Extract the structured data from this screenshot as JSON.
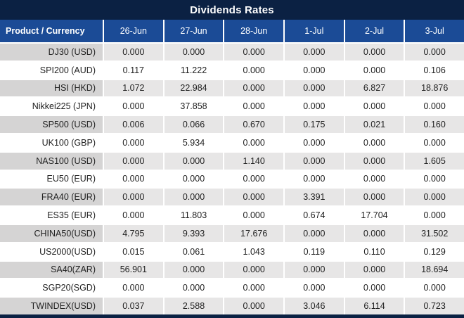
{
  "title": "Dividends Rates",
  "table": {
    "product_header": "Product / Currency",
    "date_headers": [
      "26-Jun",
      "27-Jun",
      "28-Jun",
      "1-Jul",
      "2-Jul",
      "3-Jul"
    ],
    "rows": [
      {
        "product": "DJ30 (USD)",
        "values": [
          "0.000",
          "0.000",
          "0.000",
          "0.000",
          "0.000",
          "0.000"
        ]
      },
      {
        "product": "SPI200 (AUD)",
        "values": [
          "0.117",
          "11.222",
          "0.000",
          "0.000",
          "0.000",
          "0.106"
        ]
      },
      {
        "product": "HSI (HKD)",
        "values": [
          "1.072",
          "22.984",
          "0.000",
          "0.000",
          "6.827",
          "18.876"
        ]
      },
      {
        "product": "Nikkei225 (JPN)",
        "values": [
          "0.000",
          "37.858",
          "0.000",
          "0.000",
          "0.000",
          "0.000"
        ]
      },
      {
        "product": "SP500 (USD)",
        "values": [
          "0.006",
          "0.066",
          "0.670",
          "0.175",
          "0.021",
          "0.160"
        ]
      },
      {
        "product": "UK100 (GBP)",
        "values": [
          "0.000",
          "5.934",
          "0.000",
          "0.000",
          "0.000",
          "0.000"
        ]
      },
      {
        "product": "NAS100 (USD)",
        "values": [
          "0.000",
          "0.000",
          "1.140",
          "0.000",
          "0.000",
          "1.605"
        ]
      },
      {
        "product": "EU50 (EUR)",
        "values": [
          "0.000",
          "0.000",
          "0.000",
          "0.000",
          "0.000",
          "0.000"
        ]
      },
      {
        "product": "FRA40 (EUR)",
        "values": [
          "0.000",
          "0.000",
          "0.000",
          "3.391",
          "0.000",
          "0.000"
        ]
      },
      {
        "product": "ES35 (EUR)",
        "values": [
          "0.000",
          "11.803",
          "0.000",
          "0.674",
          "17.704",
          "0.000"
        ]
      },
      {
        "product": "CHINA50(USD)",
        "values": [
          "4.795",
          "9.393",
          "17.676",
          "0.000",
          "0.000",
          "31.502"
        ]
      },
      {
        "product": "US2000(USD)",
        "values": [
          "0.015",
          "0.061",
          "1.043",
          "0.119",
          "0.110",
          "0.129"
        ]
      },
      {
        "product": "SA40(ZAR)",
        "values": [
          "56.901",
          "0.000",
          "0.000",
          "0.000",
          "0.000",
          "18.694"
        ]
      },
      {
        "product": "SGP20(SGD)",
        "values": [
          "0.000",
          "0.000",
          "0.000",
          "0.000",
          "0.000",
          "0.000"
        ]
      },
      {
        "product": "TWINDEX(USD)",
        "values": [
          "0.037",
          "2.588",
          "0.000",
          "3.046",
          "6.114",
          "0.723"
        ]
      }
    ],
    "zero_value": "0.000"
  },
  "colors": {
    "title_bar_navy": "#0b2143",
    "header_blue": "#1b4b96",
    "row_gray": "#e7e6e6",
    "label_gray": "#d5d4d4",
    "value_red": "#ee1111",
    "value_black": "#222222"
  }
}
